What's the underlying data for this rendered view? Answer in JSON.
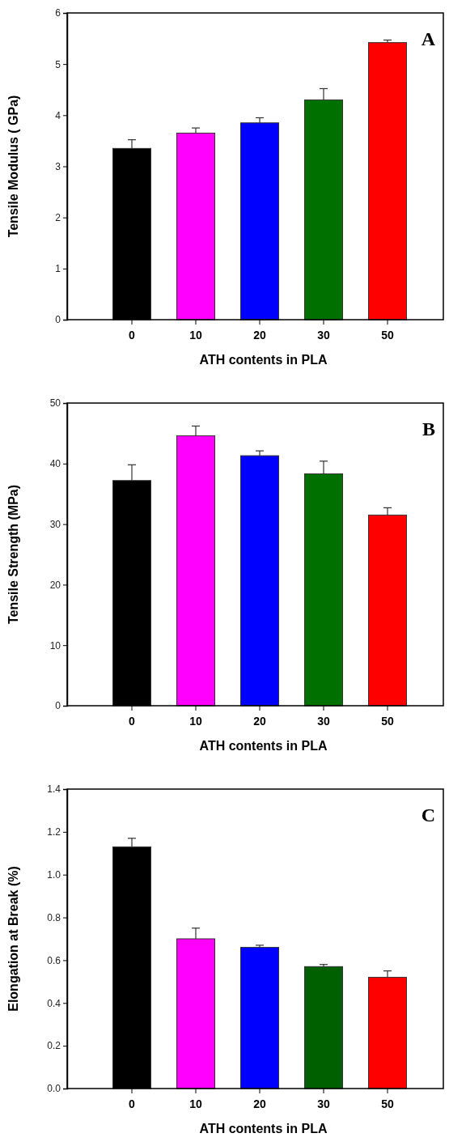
{
  "chart_data": [
    {
      "type": "bar",
      "xlabel": "ATH contents in PLA",
      "ylabel": "Tensile Modulus ( GPa)",
      "annotations": [
        "A"
      ],
      "categories": [
        "0",
        "10",
        "20",
        "30",
        "50"
      ],
      "values": [
        3.35,
        3.65,
        3.85,
        4.3,
        5.42
      ],
      "colors": [
        "#000000",
        "#ff00ff",
        "#0000ff",
        "#007000",
        "#ff0000"
      ],
      "errors": [
        [
          3.35,
          3.52
        ],
        [
          3.65,
          3.75
        ],
        [
          3.85,
          3.95
        ],
        [
          4.3,
          4.52
        ],
        [
          5.42,
          5.47
        ]
      ],
      "ylim": [
        0,
        6
      ],
      "yticks": [
        0,
        1,
        2,
        3,
        4,
        5,
        6
      ],
      "grid": false
    },
    {
      "type": "bar",
      "xlabel": "ATH contents in PLA",
      "ylabel": "Tensile  Strength (MPa)",
      "annotations": [
        "B"
      ],
      "categories": [
        "0",
        "10",
        "20",
        "30",
        "50"
      ],
      "values": [
        37.2,
        44.6,
        41.3,
        38.3,
        31.5
      ],
      "colors": [
        "#000000",
        "#ff00ff",
        "#0000ff",
        "#007000",
        "#ff0000"
      ],
      "errors": [
        [
          37.2,
          39.8
        ],
        [
          44.6,
          46.2
        ],
        [
          41.3,
          42.1
        ],
        [
          38.3,
          40.4
        ],
        [
          31.5,
          32.7
        ]
      ],
      "ylim": [
        0,
        50
      ],
      "yticks": [
        0,
        10,
        20,
        30,
        40,
        50
      ],
      "grid": false
    },
    {
      "type": "bar",
      "xlabel": "ATH contents in PLA",
      "ylabel": "Elongation at Break (%)",
      "annotations": [
        "C"
      ],
      "categories": [
        "0",
        "10",
        "20",
        "30",
        "50"
      ],
      "values": [
        1.13,
        0.7,
        0.66,
        0.57,
        0.52
      ],
      "colors": [
        "#000000",
        "#ff00ff",
        "#0000ff",
        "#006000",
        "#ff0000"
      ],
      "errors": [
        [
          1.13,
          1.17
        ],
        [
          0.7,
          0.75
        ],
        [
          0.66,
          0.67
        ],
        [
          0.57,
          0.58
        ],
        [
          0.52,
          0.55
        ]
      ],
      "ylim": [
        0,
        1.4
      ],
      "yticks": [
        {
          "value": 0,
          "label": "0.0"
        },
        {
          "value": 0.2,
          "label": "0.2"
        },
        {
          "value": 0.4,
          "label": "0.4"
        },
        {
          "value": 0.6,
          "label": "0.6"
        },
        {
          "value": 0.8,
          "label": "0.8"
        },
        {
          "value": 1.0,
          "label": "1.0"
        },
        {
          "value": 1.2,
          "label": "1.2"
        },
        {
          "value": 1.4,
          "label": "1.4"
        }
      ],
      "grid": false
    }
  ]
}
